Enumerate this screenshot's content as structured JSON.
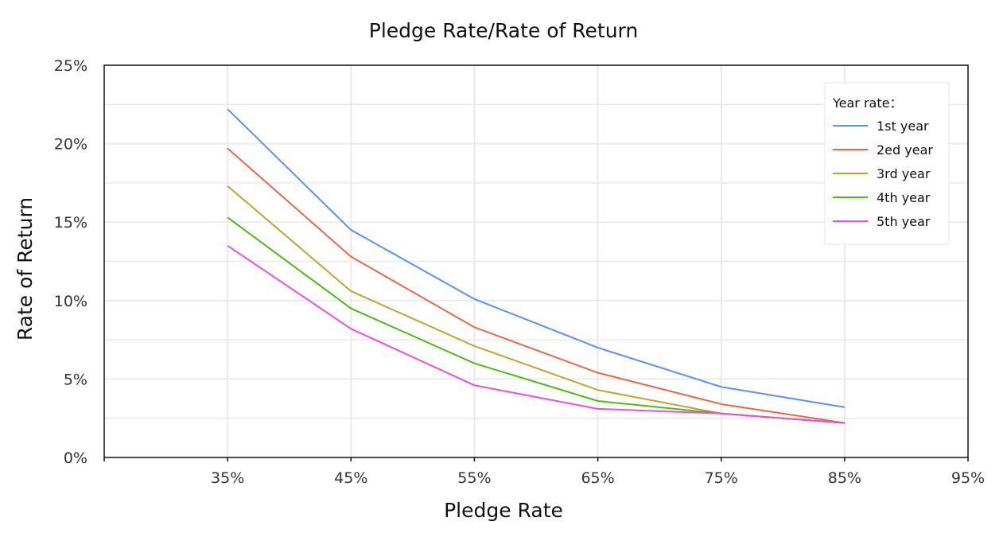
{
  "chart_data": {
    "type": "line",
    "title": "Pledge Rate/Rate of Return",
    "xlabel": "Pledge Rate",
    "ylabel": "Rate of Return",
    "x_ticks": [
      "35%",
      "45%",
      "55%",
      "65%",
      "75%",
      "85%",
      "95%"
    ],
    "x_tick_values": [
      35,
      45,
      55,
      65,
      75,
      85,
      95
    ],
    "y_ticks": [
      "0%",
      "5%",
      "10%",
      "15%",
      "20%",
      "25%"
    ],
    "y_tick_values": [
      0,
      5,
      10,
      15,
      20,
      25
    ],
    "xlim": [
      25,
      95
    ],
    "ylim": [
      0,
      25
    ],
    "grid": true,
    "legend": {
      "title": "Year rate：",
      "position": "top-right"
    },
    "x": [
      35,
      45,
      55,
      65,
      75,
      85
    ],
    "series": [
      {
        "name": "1st year",
        "color": "#5b8ff9",
        "values": [
          22.2,
          14.5,
          10.1,
          7.0,
          4.5,
          3.2
        ]
      },
      {
        "name": "2ed year",
        "color": "#e8684a",
        "values": [
          19.7,
          12.8,
          8.3,
          5.4,
          3.4,
          2.2
        ]
      },
      {
        "name": "3rd year",
        "color": "#c4a232",
        "values": [
          17.3,
          10.6,
          7.1,
          4.3,
          2.8,
          2.2
        ]
      },
      {
        "name": "4th year",
        "color": "#52b81a",
        "values": [
          15.3,
          9.5,
          6.0,
          3.6,
          2.8,
          2.2
        ]
      },
      {
        "name": "5th year",
        "color": "#ef4fd6",
        "values": [
          13.5,
          8.2,
          4.6,
          3.1,
          2.8,
          2.2
        ]
      }
    ]
  }
}
